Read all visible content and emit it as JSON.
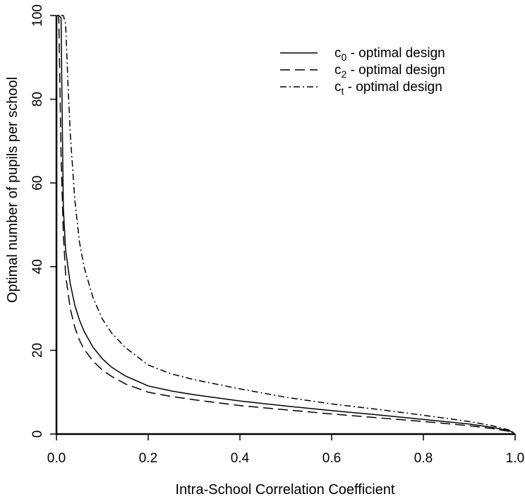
{
  "chart_data": {
    "type": "line",
    "title": "",
    "xlabel": "Intra-School Correlation Coefficient",
    "ylabel": "Optimal number of pupils per school",
    "xlim": [
      0,
      1
    ],
    "ylim": [
      0,
      100
    ],
    "xticks": [
      0,
      0.2,
      0.4,
      0.6,
      0.8,
      1
    ],
    "xtick_labels": [
      "0.0",
      "0.2",
      "0.4",
      "0.6",
      "0.8",
      "1.0"
    ],
    "yticks": [
      0,
      20,
      40,
      60,
      80,
      100
    ],
    "ytick_labels": [
      "0",
      "20",
      "40",
      "60",
      "80",
      "100"
    ],
    "grid": false,
    "legend_position": "top-right",
    "series": [
      {
        "name": "c0 - optimal design",
        "legend_main": "c",
        "legend_sub": "0",
        "legend_rest": " - optimal design",
        "dash": "solid",
        "x": [
          0.001,
          0.003,
          0.005,
          0.01,
          0.015,
          0.02,
          0.03,
          0.04,
          0.05,
          0.06,
          0.08,
          0.1,
          0.12,
          0.15,
          0.2,
          0.25,
          0.3,
          0.4,
          0.5,
          0.6,
          0.7,
          0.8,
          0.9,
          0.95,
          0.99,
          1.0
        ],
        "y": [
          100,
          100,
          100,
          99.5,
          54,
          44,
          36,
          30.8,
          27.3,
          24.6,
          20.7,
          18.0,
          16.0,
          13.9,
          11.5,
          10.3,
          9.4,
          7.9,
          6.7,
          5.6,
          4.6,
          3.5,
          2.4,
          1.6,
          0.7,
          0
        ]
      },
      {
        "name": "c2 - optimal design",
        "legend_main": "c",
        "legend_sub": "2",
        "legend_rest": " - optimal design",
        "dash": "long-dash",
        "x": [
          0.001,
          0.003,
          0.005,
          0.01,
          0.015,
          0.02,
          0.03,
          0.04,
          0.05,
          0.06,
          0.08,
          0.1,
          0.12,
          0.15,
          0.2,
          0.25,
          0.3,
          0.4,
          0.5,
          0.6,
          0.7,
          0.8,
          0.9,
          0.95,
          0.99,
          1.0
        ],
        "y": [
          100,
          100,
          100,
          67,
          48,
          38,
          30,
          25.5,
          22.5,
          20.3,
          17.4,
          15.3,
          13.8,
          12.0,
          10.0,
          9.0,
          8.2,
          6.8,
          5.8,
          4.8,
          3.9,
          3.0,
          2.0,
          1.3,
          0.6,
          0
        ]
      },
      {
        "name": "ct - optimal design",
        "legend_main": "c",
        "legend_sub": "t",
        "legend_rest": " - optimal design",
        "dash": "dash-dot",
        "x": [
          0.01,
          0.015,
          0.02,
          0.025,
          0.03,
          0.04,
          0.05,
          0.06,
          0.08,
          0.1,
          0.12,
          0.15,
          0.2,
          0.25,
          0.3,
          0.4,
          0.5,
          0.6,
          0.7,
          0.8,
          0.9,
          0.95,
          0.99,
          1.0
        ],
        "y": [
          100,
          100,
          98,
          84,
          72,
          56,
          46,
          40,
          32.5,
          27.5,
          24.2,
          20.7,
          16.5,
          14.4,
          13.0,
          10.8,
          8.8,
          7.2,
          5.9,
          4.5,
          3.0,
          2.0,
          0.9,
          0
        ]
      }
    ]
  }
}
